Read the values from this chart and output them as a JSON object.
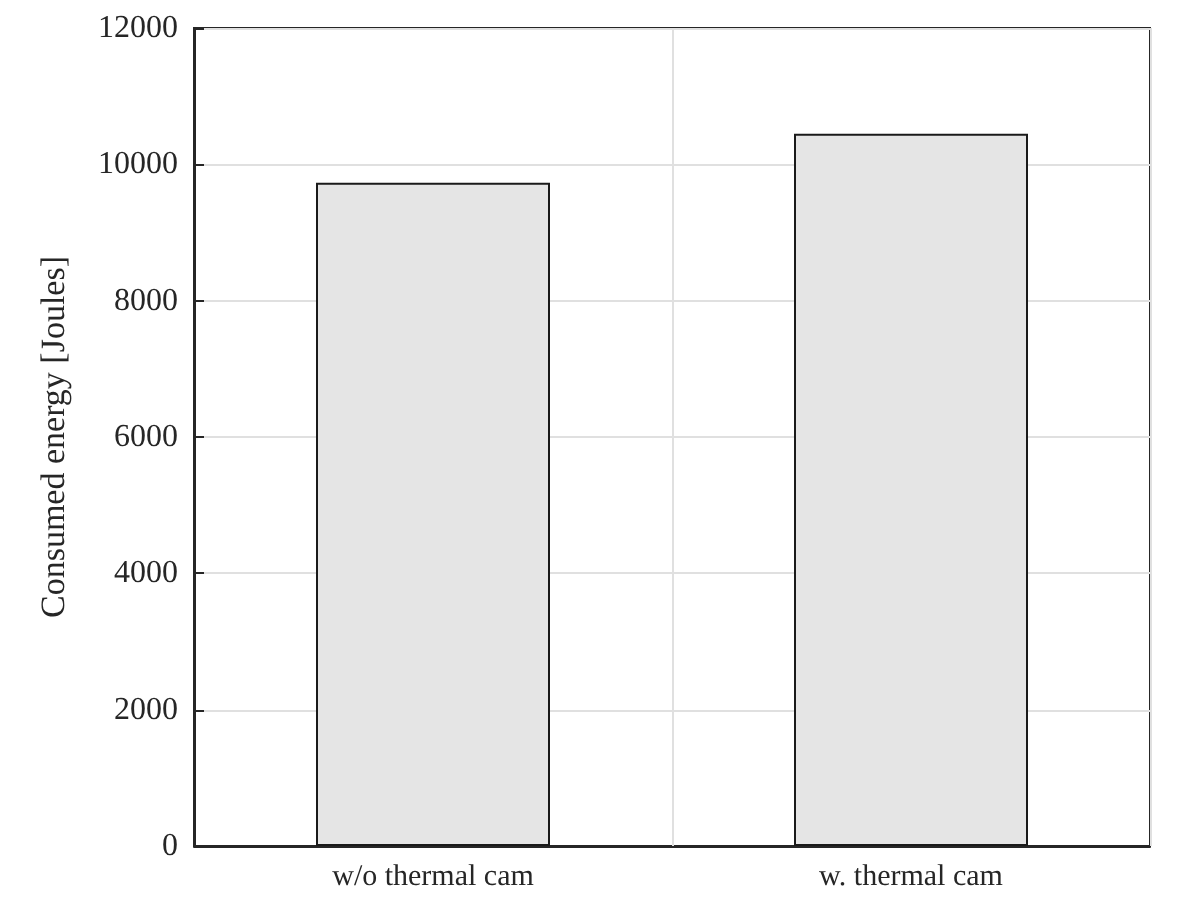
{
  "chart_data": {
    "type": "bar",
    "ylabel": "Consumed energy [Joules]",
    "categories": [
      "w/o thermal cam",
      "w. thermal cam"
    ],
    "values": [
      9730,
      10450
    ],
    "color": "#e5e5e5",
    "ylim": [
      0,
      12000
    ],
    "yticks": [
      0,
      2000,
      4000,
      6000,
      8000,
      10000,
      12000
    ],
    "grid": true
  }
}
